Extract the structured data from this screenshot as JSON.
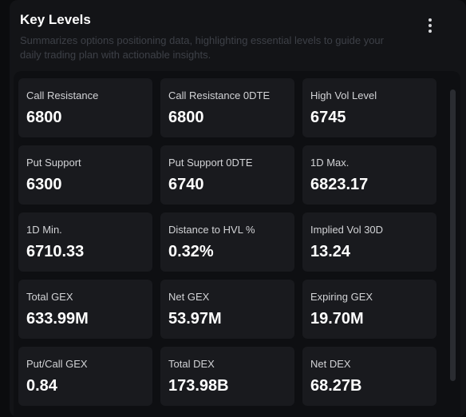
{
  "header": {
    "title": "Key Levels",
    "subtitle": "Summarizes options positioning data, highlighting essential levels to guide your daily trading plan with actionable insights."
  },
  "levels": [
    {
      "label": "Call Resistance",
      "value": "6800"
    },
    {
      "label": "Call Resistance 0DTE",
      "value": "6800"
    },
    {
      "label": "High Vol Level",
      "value": "6745"
    },
    {
      "label": "Put Support",
      "value": "6300"
    },
    {
      "label": "Put Support 0DTE",
      "value": "6740"
    },
    {
      "label": "1D Max.",
      "value": "6823.17"
    },
    {
      "label": "1D Min.",
      "value": "6710.33"
    },
    {
      "label": "Distance to HVL %",
      "value": "0.32%"
    },
    {
      "label": "Implied Vol 30D",
      "value": "13.24"
    },
    {
      "label": "Total GEX",
      "value": "633.99M"
    },
    {
      "label": "Net GEX",
      "value": "53.97M"
    },
    {
      "label": "Expiring GEX",
      "value": "19.70M"
    },
    {
      "label": "Put/Call GEX",
      "value": "0.84"
    },
    {
      "label": "Total DEX",
      "value": "173.98B"
    },
    {
      "label": "Net DEX",
      "value": "68.27B"
    }
  ],
  "icons": {
    "menu": "more-vertical-icon"
  }
}
